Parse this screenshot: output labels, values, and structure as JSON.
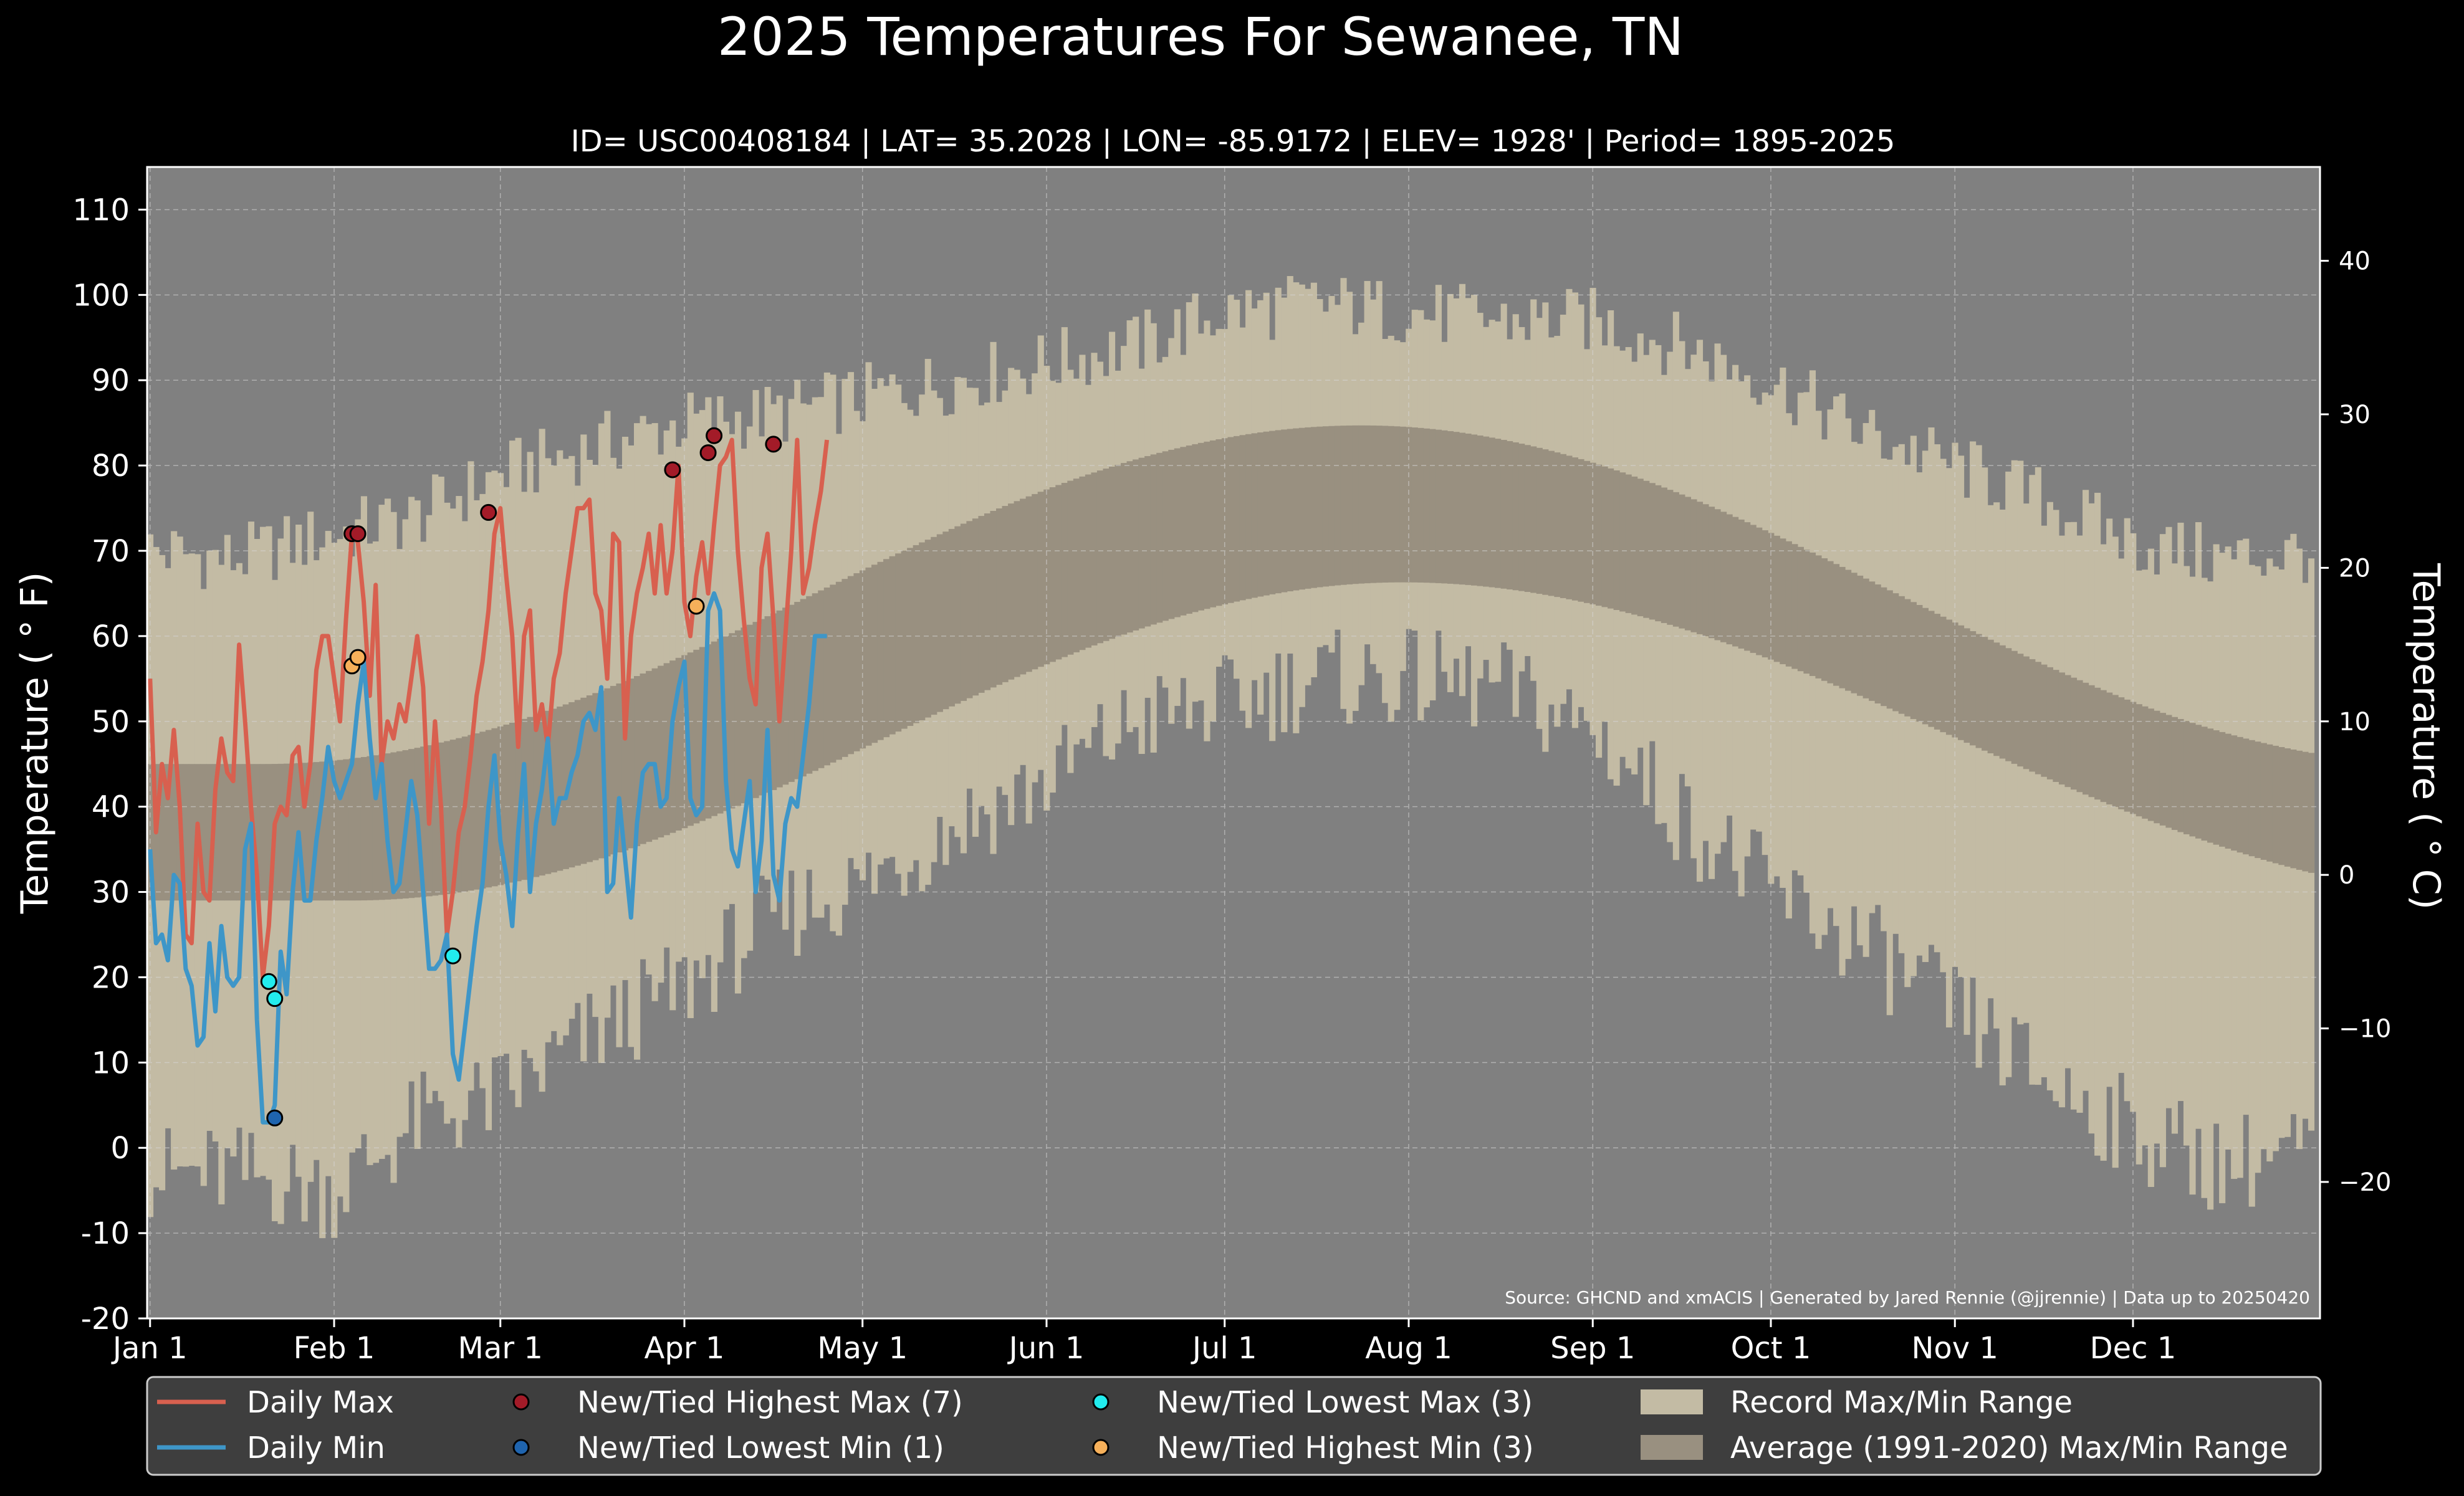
{
  "chart_data": {
    "type": "line",
    "title": "2025 Temperatures For Sewanee, TN",
    "subtitle": "ID= USC00408184 | LAT= 35.2028 | LON= -85.9172 | ELEV= 1928' | Period= 1895-2025",
    "ylabel": "Temperature ($^\\circ$F)",
    "ylabel_display": "Temperature ( ° F)",
    "y2label_display": "Temperature ( ° C)",
    "ylim": [
      -20,
      115
    ],
    "y2lim_c": [
      -28.89,
      46.11
    ],
    "yticks": [
      -20,
      -10,
      0,
      10,
      20,
      30,
      40,
      50,
      60,
      70,
      80,
      90,
      100,
      110
    ],
    "yticks_labels": [
      "-20",
      "-10",
      "0",
      "10",
      "20",
      "30",
      "40",
      "50",
      "60",
      "70",
      "80",
      "90",
      "100",
      "110"
    ],
    "y2ticks": [
      -20,
      -10,
      0,
      10,
      20,
      30,
      40
    ],
    "y2ticks_labels": [
      "−20",
      "−10",
      "0",
      "10",
      "20",
      "30",
      "40"
    ],
    "xlim_day": [
      0.5,
      366.5
    ],
    "xticks": [
      {
        "label": "Jan 1",
        "day": 1
      },
      {
        "label": "Feb 1",
        "day": 32
      },
      {
        "label": "Mar 1",
        "day": 60
      },
      {
        "label": "Apr 1",
        "day": 91
      },
      {
        "label": "May 1",
        "day": 121
      },
      {
        "label": "Jun 1",
        "day": 152
      },
      {
        "label": "Jul 1",
        "day": 182
      },
      {
        "label": "Aug 1",
        "day": 213
      },
      {
        "label": "Sep 1",
        "day": 244
      },
      {
        "label": "Oct 1",
        "day": 274
      },
      {
        "label": "Nov 1",
        "day": 305
      },
      {
        "label": "Dec 1",
        "day": 335
      }
    ],
    "grid": true,
    "legend_position": "bottom",
    "source_note": "Source: GHCND and xmACIS | Generated by Jared Rennie (@jjrennie) | Data up to 20250420",
    "colors": {
      "background": "#000000",
      "plot_bg": "#808080",
      "record_band": "#c3bba4",
      "avg_band": "#999080",
      "daily_max": "#d8604f",
      "daily_min": "#3e96c8",
      "new_high_max": "#a31b28",
      "new_low_min": "#1f64ae",
      "new_low_max": "#22ecee",
      "new_high_min": "#f6b05a",
      "legend_bg": "#3e3e3e",
      "legend_border": "#cccccc"
    },
    "normals": {
      "avg_max": {
        "min_value": 45,
        "min_day": 20,
        "max_value": 84.7,
        "max_day": 205
      },
      "avg_min": {
        "min_value": 29,
        "min_day": 35,
        "max_value": 66.3,
        "max_day": 212
      }
    },
    "record_max_anchors": {
      "days": [
        1,
        15,
        32,
        46,
        60,
        75,
        91,
        106,
        121,
        137,
        152,
        167,
        182,
        197,
        213,
        228,
        244,
        259,
        274,
        289,
        305,
        320,
        335,
        350,
        366
      ],
      "values": [
        70,
        69,
        72,
        74,
        79,
        82,
        85,
        86,
        88,
        90,
        92,
        94,
        98,
        99,
        98,
        97,
        97,
        94,
        90,
        84,
        80,
        76,
        71,
        69,
        70
      ]
    },
    "record_min_anchors": {
      "days": [
        1,
        15,
        32,
        46,
        60,
        75,
        91,
        106,
        121,
        137,
        152,
        167,
        182,
        197,
        213,
        228,
        244,
        259,
        274,
        289,
        305,
        320,
        335,
        350,
        366
      ],
      "values": [
        -3,
        -3,
        -5,
        3,
        6,
        13,
        19,
        27,
        31,
        38,
        43,
        50,
        52,
        55,
        55,
        54,
        49,
        39,
        30,
        24,
        16,
        8,
        2,
        -2,
        0
      ]
    },
    "series": [
      {
        "name": "Daily Max",
        "color": "#d8604f",
        "start_day": 1,
        "values": [
          55,
          37,
          45,
          41,
          49,
          40,
          25,
          24,
          38,
          30,
          29,
          42,
          48,
          44,
          43,
          59,
          50,
          40,
          32,
          20,
          26,
          38,
          40,
          39,
          46,
          47,
          40,
          45,
          56,
          60,
          60,
          55,
          50,
          62,
          72,
          71,
          64,
          53,
          66,
          45,
          50,
          48,
          52,
          50,
          55,
          60,
          54,
          38,
          50,
          40,
          25,
          30,
          37,
          40,
          46,
          53,
          57,
          63,
          72,
          75,
          67,
          60,
          47,
          60,
          63,
          49,
          52,
          47,
          55,
          58,
          65,
          70,
          75,
          75,
          76,
          65,
          63,
          55,
          72,
          71,
          48,
          60,
          65,
          68,
          72,
          65,
          73,
          65,
          70,
          80,
          64,
          60,
          67,
          71,
          65,
          73,
          80,
          81,
          83,
          70,
          62,
          55,
          52,
          68,
          72,
          62,
          50,
          60,
          70,
          83,
          65,
          68,
          73,
          77,
          83
        ]
      },
      {
        "name": "Daily Min",
        "color": "#3e96c8",
        "start_day": 1,
        "values": [
          35,
          24,
          25,
          22,
          32,
          31,
          21,
          19,
          12,
          13,
          24,
          16,
          26,
          20,
          19,
          20,
          35,
          38,
          15,
          3,
          3,
          5,
          23,
          18,
          30,
          37,
          29,
          29,
          36,
          41,
          47,
          43,
          41,
          43,
          45,
          52,
          57,
          48,
          41,
          45,
          36,
          30,
          31,
          37,
          43,
          39,
          30,
          21,
          21,
          22,
          25,
          11,
          8,
          14,
          20,
          26,
          31,
          40,
          46,
          36,
          32,
          26,
          37,
          45,
          30,
          38,
          42,
          48,
          38,
          41,
          41,
          44,
          46,
          50,
          51,
          49,
          54,
          30,
          31,
          41,
          34,
          27,
          38,
          44,
          45,
          45,
          40,
          41,
          50,
          54,
          57,
          41,
          39,
          40,
          63,
          65,
          63,
          43,
          35,
          33,
          38,
          43,
          30,
          36,
          49,
          32,
          29,
          38,
          41,
          40,
          46,
          52,
          60,
          60,
          60
        ]
      }
    ],
    "markers": [
      {
        "name": "New/Tied Highest Max (7)",
        "color": "#a31b28",
        "points": [
          {
            "day": 35,
            "value": 72
          },
          {
            "day": 36,
            "value": 72
          },
          {
            "day": 58,
            "value": 74.5
          },
          {
            "day": 89,
            "value": 79.5
          },
          {
            "day": 95,
            "value": 81.5
          },
          {
            "day": 96,
            "value": 83.5
          },
          {
            "day": 106,
            "value": 82.5
          }
        ]
      },
      {
        "name": "New/Tied Lowest Min (1)",
        "color": "#1f64ae",
        "points": [
          {
            "day": 22,
            "value": 3.5
          }
        ]
      },
      {
        "name": "New/Tied Lowest Max (3)",
        "color": "#22ecee",
        "points": [
          {
            "day": 21,
            "value": 19.5
          },
          {
            "day": 22,
            "value": 17.5
          },
          {
            "day": 52,
            "value": 22.5
          }
        ]
      },
      {
        "name": "New/Tied Highest Min (3)",
        "color": "#f6b05a",
        "points": [
          {
            "day": 35,
            "value": 56.5
          },
          {
            "day": 36,
            "value": 57.5
          },
          {
            "day": 93,
            "value": 63.5
          }
        ]
      }
    ],
    "legend": [
      {
        "label": "Daily Max",
        "kind": "line",
        "color": "#d8604f"
      },
      {
        "label": "New/Tied Highest Max (7)",
        "kind": "marker",
        "color": "#a31b28"
      },
      {
        "label": "New/Tied Lowest Max (3)",
        "kind": "marker",
        "color": "#22ecee"
      },
      {
        "label": "Record Max/Min Range",
        "kind": "patch",
        "color": "#c3bba4"
      },
      {
        "label": "Daily Min",
        "kind": "line",
        "color": "#3e96c8"
      },
      {
        "label": "New/Tied Lowest Min (1)",
        "kind": "marker",
        "color": "#1f64ae"
      },
      {
        "label": "New/Tied Highest Min (3)",
        "kind": "marker",
        "color": "#f6b05a"
      },
      {
        "label": "Average (1991-2020) Max/Min Range",
        "kind": "patch",
        "color": "#999080"
      }
    ]
  }
}
